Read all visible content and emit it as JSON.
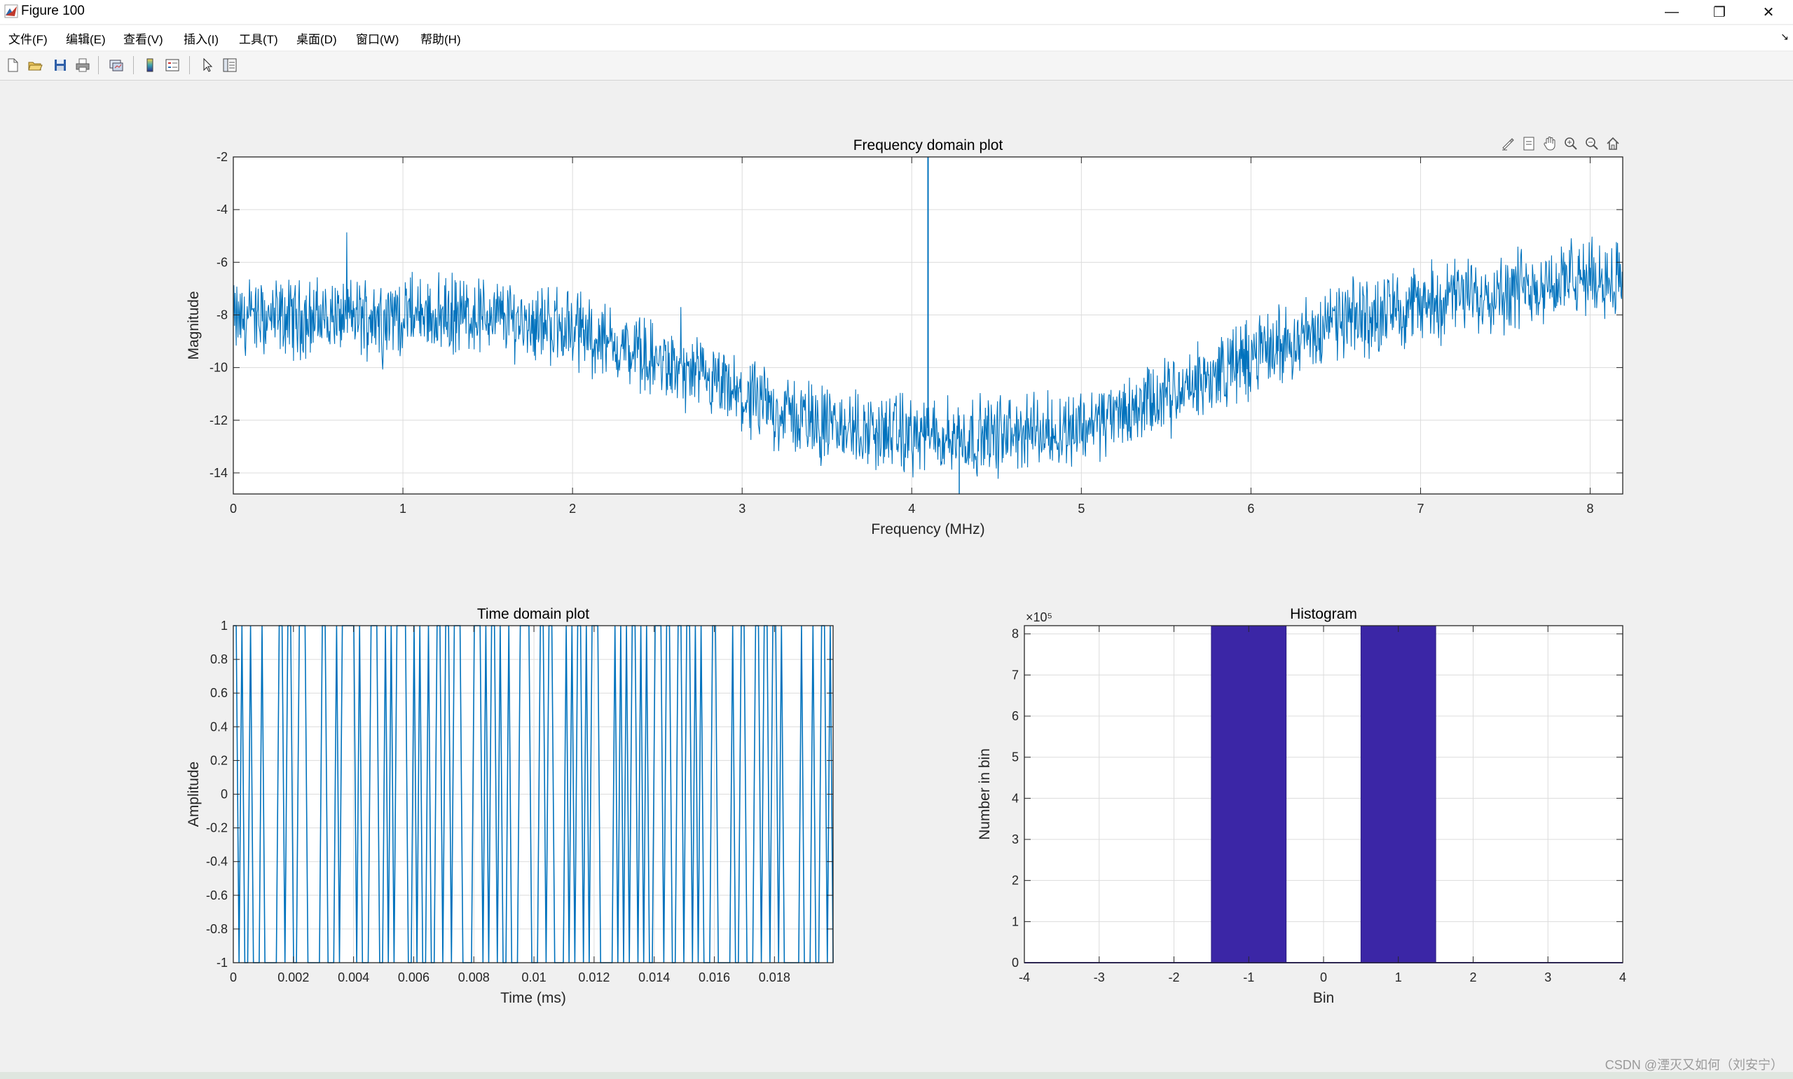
{
  "window": {
    "title": "Figure 100",
    "minimize_glyph": "—",
    "restore_glyph": "❐",
    "close_glyph": "✕"
  },
  "menu": {
    "items": [
      "文件(F)",
      "编辑(E)",
      "查看(V)",
      "插入(I)",
      "工具(T)",
      "桌面(D)",
      "窗口(W)",
      "帮助(H)"
    ],
    "dock_arrow": "↘"
  },
  "toolbar": {
    "icons": [
      "new-figure-icon",
      "open-file-icon",
      "save-icon",
      "print-icon",
      "link-plot-icon",
      "insert-colorbar-icon",
      "insert-legend-icon",
      "edit-plot-arrow-icon",
      "property-inspector-icon"
    ]
  },
  "axes_toolbar": {
    "icons": [
      "brush-icon",
      "data-tips-icon",
      "pan-hand-icon",
      "zoom-in-icon",
      "zoom-out-icon",
      "home-restore-icon"
    ]
  },
  "colors": {
    "line": "#0072bd",
    "bars": "#3b26a6",
    "grid": "#dcdcdc",
    "background": "#f0f0f0"
  },
  "watermark": "CSDN @湮灭又如何（刘安宁）",
  "chart_data": [
    {
      "type": "line",
      "title": "Frequency domain plot",
      "xlabel": "Frequency (MHz)",
      "ylabel": "Magnitude",
      "xlim": [
        0,
        8.192
      ],
      "ylim": [
        -14.8,
        -2
      ],
      "xticks": [
        0,
        1,
        2,
        3,
        4,
        5,
        6,
        7,
        8
      ],
      "yticks": [
        -14,
        -12,
        -10,
        -8,
        -6,
        -4,
        -2
      ],
      "grid": true,
      "trend": {
        "x": [
          0,
          0.5,
          1.0,
          1.5,
          2.0,
          2.5,
          3.0,
          3.5,
          4.0,
          4.5,
          5.0,
          5.5,
          6.0,
          6.5,
          7.0,
          7.5,
          8.0,
          8.19
        ],
        "y": [
          -8.2,
          -8.1,
          -8.0,
          -8.0,
          -8.5,
          -9.8,
          -11.2,
          -12.2,
          -12.6,
          -12.6,
          -12.2,
          -11.2,
          -9.6,
          -8.3,
          -7.6,
          -7.0,
          -6.6,
          -6.5
        ]
      },
      "noise_peak_to_peak": 2.2,
      "spike": {
        "x": 4.096,
        "y": -2
      },
      "dip": {
        "x": 4.28,
        "y": -14.8
      }
    },
    {
      "type": "line",
      "title": "Time domain plot",
      "xlabel": "Time (ms)",
      "ylabel": "Amplitude",
      "xlim": [
        0,
        0.01995
      ],
      "ylim": [
        -1,
        1
      ],
      "xticks": [
        0,
        0.002,
        0.004,
        0.006,
        0.008,
        0.01,
        0.012,
        0.014,
        0.016,
        0.018
      ],
      "xtick_labels": [
        "0",
        "0.002",
        "0.004",
        "0.006",
        "0.008",
        "0.01",
        "0.012",
        "0.014",
        "0.016",
        "0.018"
      ],
      "yticks": [
        -1,
        -0.8,
        -0.6,
        -0.4,
        -0.2,
        0,
        0.2,
        0.4,
        0.6,
        0.8,
        1
      ],
      "grid": true,
      "signal": "binary ±1 random bit sequence",
      "samples": 210
    },
    {
      "type": "bar",
      "title": "Histogram",
      "xlabel": "Bin",
      "ylabel": "Number in bin",
      "y_exponent_label": "×10⁵",
      "xlim": [
        -4,
        4
      ],
      "ylim": [
        0,
        8.2
      ],
      "xticks": [
        -4,
        -3,
        -2,
        -1,
        0,
        1,
        2,
        3,
        4
      ],
      "yticks": [
        0,
        1,
        2,
        3,
        4,
        5,
        6,
        7,
        8
      ],
      "grid": true,
      "bar_width": 1,
      "categories": [
        -1,
        1
      ],
      "values": [
        8.2,
        8.2
      ]
    }
  ]
}
